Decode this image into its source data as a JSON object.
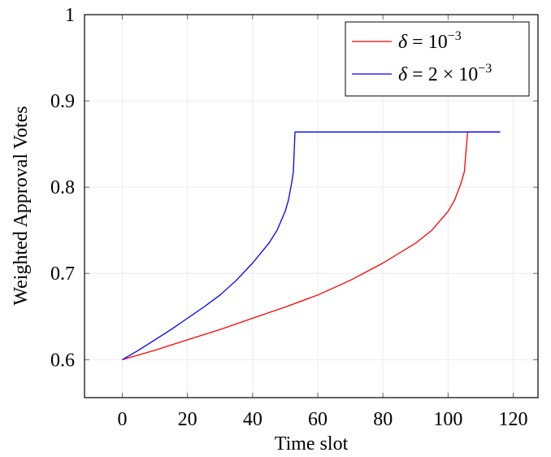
{
  "chart_data": {
    "type": "line",
    "title": "",
    "xlabel": "Time slot",
    "ylabel": "Weighted Approval Votes",
    "xlim": [
      -11.6,
      127.6
    ],
    "ylim": [
      0.556,
      1.0
    ],
    "xticks": [
      0,
      20,
      40,
      60,
      80,
      100,
      120
    ],
    "yticks": [
      0.6,
      0.7,
      0.8,
      0.9,
      1.0
    ],
    "xtick_labels": [
      "0",
      "20",
      "40",
      "60",
      "80",
      "100",
      "120"
    ],
    "ytick_labels": [
      "0.6",
      "0.7",
      "0.8",
      "0.9",
      "1"
    ],
    "grid": true,
    "legend_position": "top-right",
    "series": [
      {
        "name": "δ = 10⁻³",
        "legend_main": "δ = 10",
        "legend_sup": "−3",
        "color": "#ff0000",
        "x": [
          0,
          10,
          20,
          30,
          40,
          50,
          60,
          70,
          80,
          90,
          95,
          100,
          102,
          104,
          105,
          106,
          116
        ],
        "y": [
          0.6,
          0.611,
          0.623,
          0.635,
          0.648,
          0.661,
          0.675,
          0.692,
          0.712,
          0.735,
          0.75,
          0.772,
          0.785,
          0.805,
          0.818,
          0.864,
          0.864
        ]
      },
      {
        "name": "δ = 2 × 10⁻³",
        "legend_main": "δ = 2 × 10",
        "legend_sup": "−3",
        "color": "#0000ff",
        "x": [
          0,
          5,
          10,
          15,
          20,
          25,
          30,
          35,
          40,
          45,
          47.5,
          50,
          51,
          52,
          52.5,
          53,
          116
        ],
        "y": [
          0.6,
          0.611,
          0.623,
          0.635,
          0.648,
          0.661,
          0.675,
          0.692,
          0.712,
          0.735,
          0.75,
          0.772,
          0.785,
          0.805,
          0.818,
          0.864,
          0.864
        ]
      }
    ]
  }
}
